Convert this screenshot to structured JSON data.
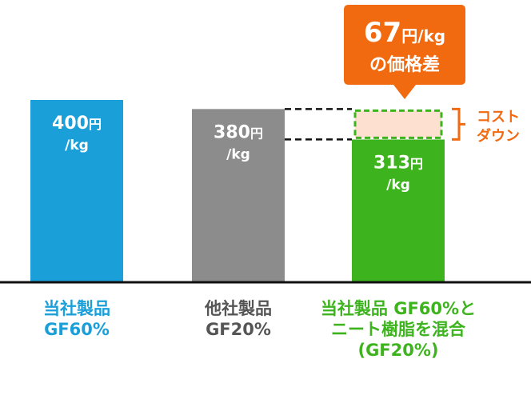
{
  "chart_data": {
    "type": "bar",
    "categories": [
      {
        "lines": [
          "当社製品",
          "GF60%"
        ]
      },
      {
        "lines": [
          "他社製品",
          "GF20%"
        ]
      },
      {
        "lines": [
          "当社製品 GF60%と",
          "ニート樹脂を混合",
          "(GF20%)"
        ]
      }
    ],
    "values": [
      400,
      380,
      313
    ],
    "value_labels": [
      {
        "num": "400",
        "unit": "円",
        "sub": "/kg"
      },
      {
        "num": "380",
        "unit": "円",
        "sub": "/kg"
      },
      {
        "num": "313",
        "unit": "円",
        "sub": "/kg"
      }
    ],
    "colors": [
      "#1a9fd9",
      "#8c8c8c",
      "#3db41e"
    ],
    "label_colors": [
      "#1a9fd9",
      "#555555",
      "#3db41e"
    ],
    "ylim": [
      0,
      400
    ],
    "callout": {
      "line1_num": "67",
      "line1_unit": "円/kg",
      "line2": "の価格差",
      "color": "#f26a10"
    },
    "cost_down": {
      "lines": [
        "コスト",
        "ダウン"
      ],
      "color": "#f26a10",
      "box_fill": "#fde0cf",
      "box_stroke": "#3db41e"
    }
  }
}
